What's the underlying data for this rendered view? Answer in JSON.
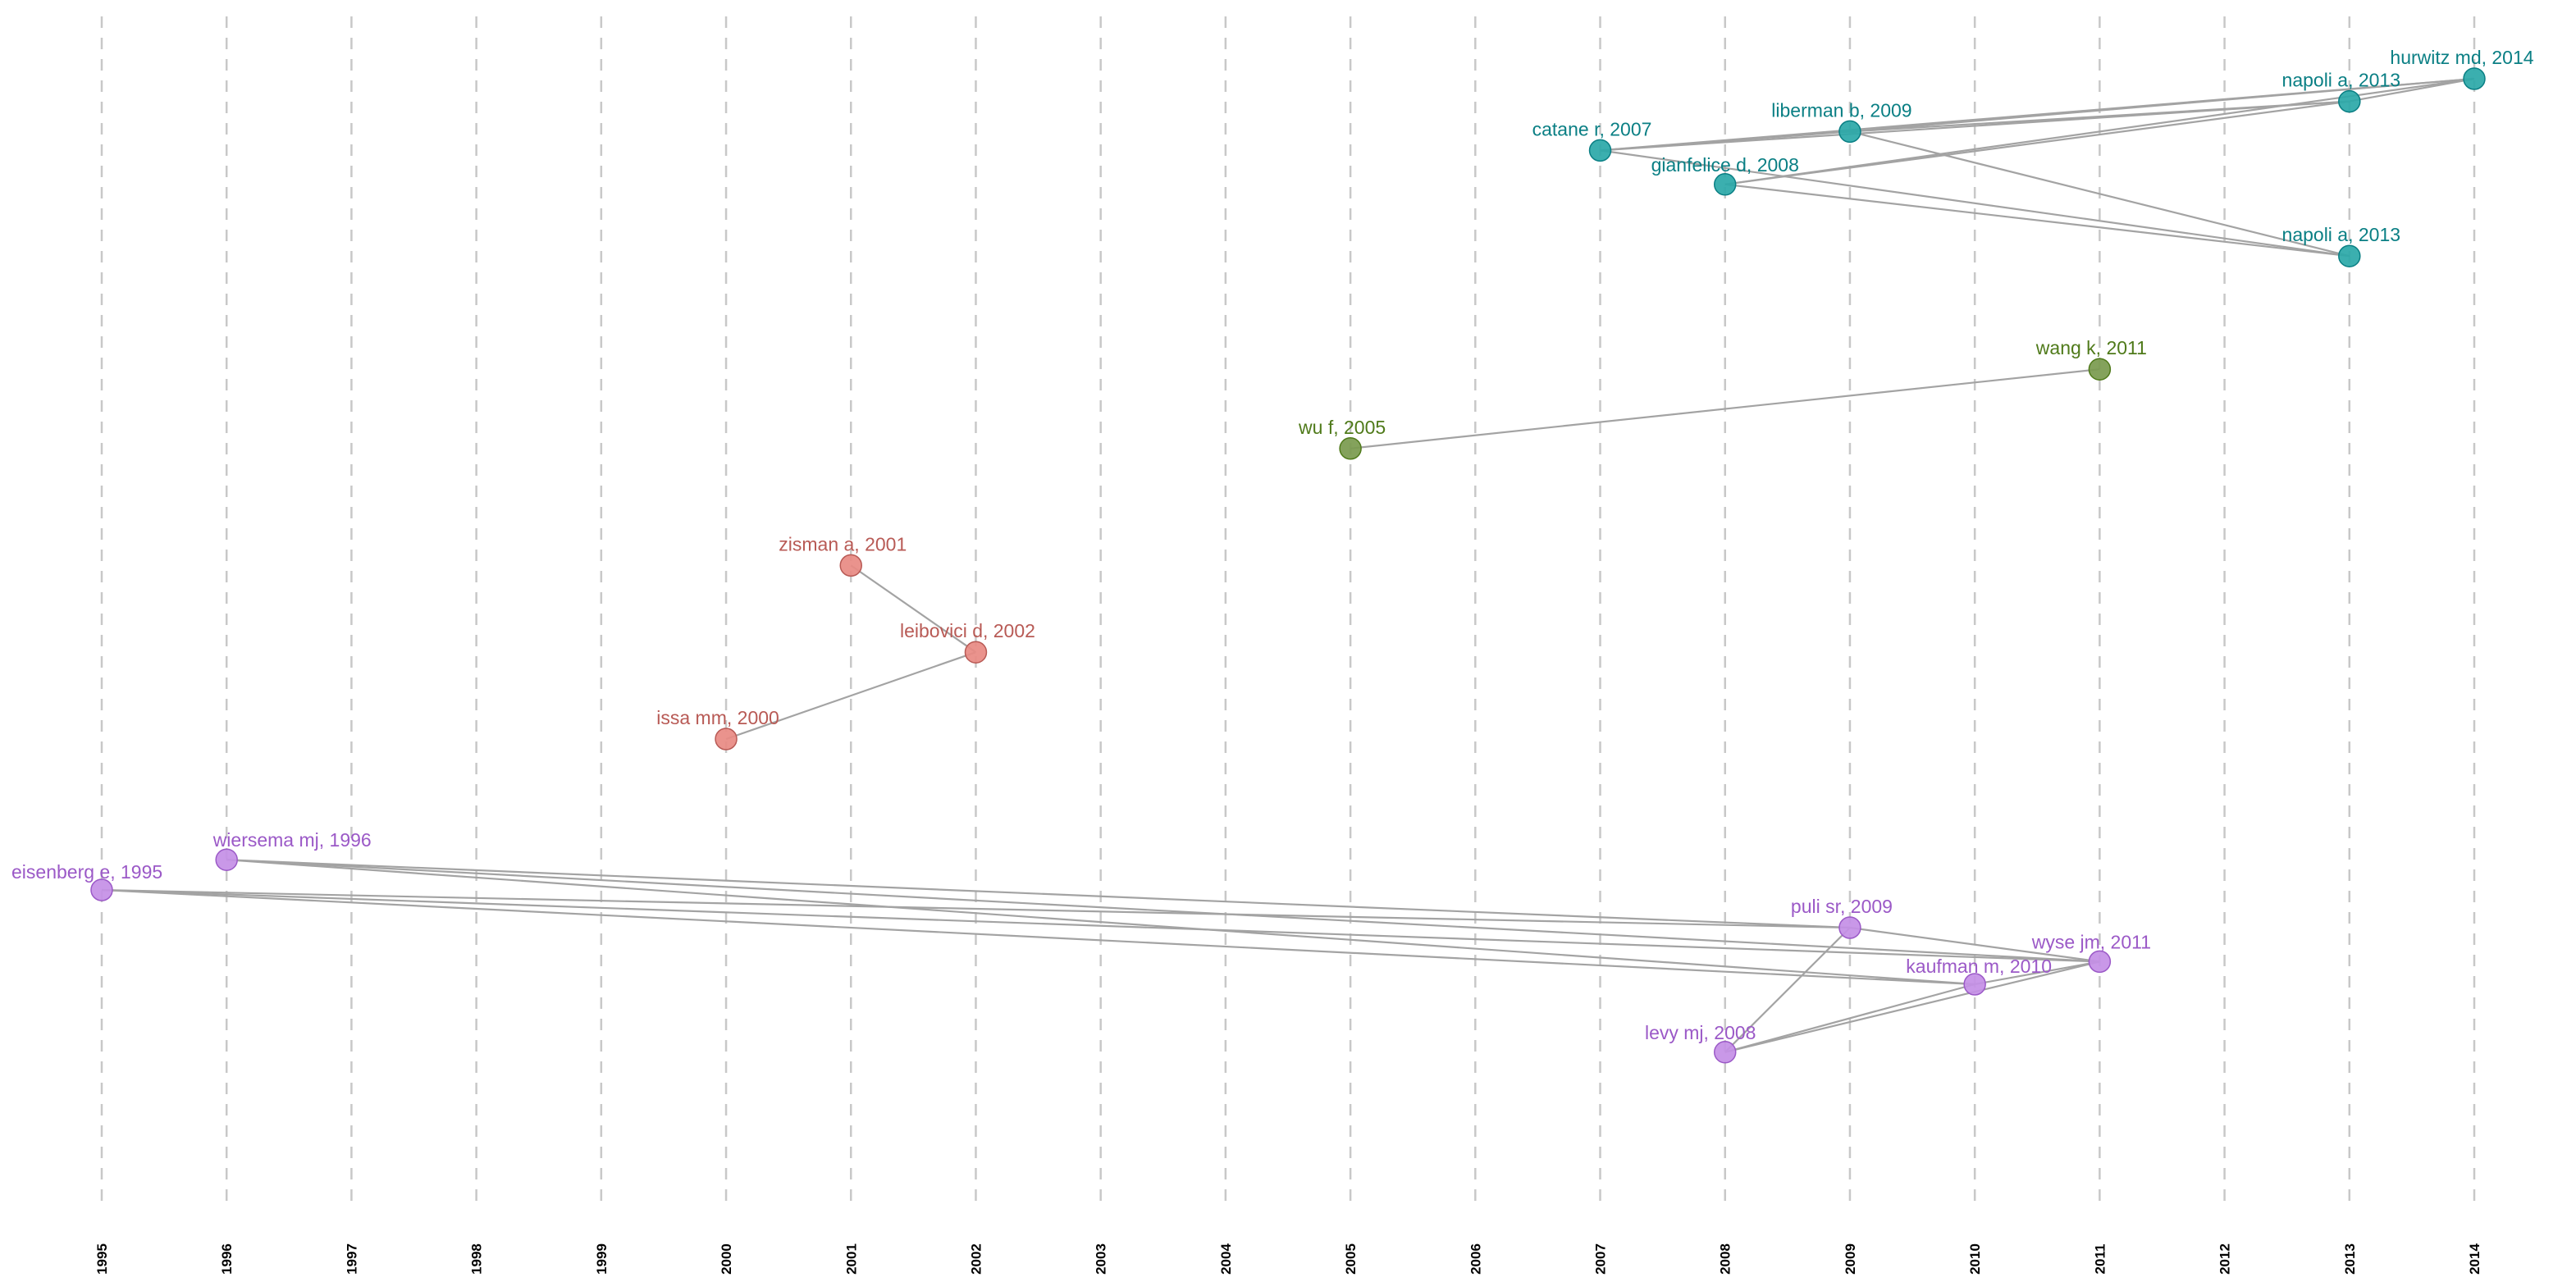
{
  "chart_data": {
    "type": "network-timeline",
    "title": "",
    "xlabel": "",
    "ylabel": "",
    "xlim": [
      1995,
      2014
    ],
    "x_ticks": [
      "1995",
      "1996",
      "1997",
      "1998",
      "1999",
      "2000",
      "2001",
      "2002",
      "2003",
      "2004",
      "2005",
      "2006",
      "2007",
      "2008",
      "2009",
      "2010",
      "2011",
      "2012",
      "2013",
      "2014"
    ],
    "grid": "vertical dashed",
    "clusters": [
      {
        "name": "cluster-1",
        "color": "#2aa8a8",
        "label_color": "#0a7f84"
      },
      {
        "name": "cluster-2",
        "color": "#7a9a4e",
        "label_color": "#4f7a1a"
      },
      {
        "name": "cluster-3",
        "color": "#e88a83",
        "label_color": "#b85a55"
      },
      {
        "name": "cluster-4",
        "color": "#c48fe6",
        "label_color": "#9b59c7"
      }
    ],
    "nodes": [
      {
        "id": "hurwitz",
        "label": "hurwitz md, 2014",
        "year": 2014,
        "row": 1.0,
        "cluster": 0
      },
      {
        "id": "napoli1",
        "label": "napoli a, 2013",
        "year": 2013,
        "row": 1.6,
        "cluster": 0
      },
      {
        "id": "liberman",
        "label": "liberman b, 2009",
        "year": 2009,
        "row": 2.4,
        "cluster": 0
      },
      {
        "id": "catane",
        "label": "catane r, 2007",
        "year": 2007,
        "row": 2.9,
        "cluster": 0
      },
      {
        "id": "gianfelice",
        "label": "gianfelice d, 2008",
        "year": 2008,
        "row": 3.8,
        "cluster": 0
      },
      {
        "id": "napoli2",
        "label": "napoli a, 2013",
        "year": 2013,
        "row": 5.7,
        "cluster": 0
      },
      {
        "id": "wang",
        "label": "wang k, 2011",
        "year": 2011,
        "row": 8.7,
        "cluster": 1
      },
      {
        "id": "wu",
        "label": "wu f, 2005",
        "year": 2005,
        "row": 10.8,
        "cluster": 1
      },
      {
        "id": "zisman",
        "label": "zisman a, 2001",
        "year": 2001,
        "row": 13.9,
        "cluster": 2
      },
      {
        "id": "leibovici",
        "label": "leibovici d, 2002",
        "year": 2002,
        "row": 16.2,
        "cluster": 2
      },
      {
        "id": "issa",
        "label": "issa mm, 2000",
        "year": 2000,
        "row": 18.5,
        "cluster": 2
      },
      {
        "id": "wiersema",
        "label": "wiersema mj, 1996",
        "year": 1996,
        "row": 21.7,
        "cluster": 3
      },
      {
        "id": "eisenberg",
        "label": "eisenberg e, 1995",
        "year": 1995,
        "row": 22.5,
        "cluster": 3
      },
      {
        "id": "puli",
        "label": "puli sr, 2009",
        "year": 2009,
        "row": 23.5,
        "cluster": 3
      },
      {
        "id": "wyse",
        "label": "wyse jm, 2011",
        "year": 2011,
        "row": 24.4,
        "cluster": 3
      },
      {
        "id": "kaufman",
        "label": "kaufman m, 2010",
        "year": 2010,
        "row": 25.0,
        "cluster": 3
      },
      {
        "id": "levy",
        "label": "levy mj, 2008",
        "year": 2008,
        "row": 26.8,
        "cluster": 3
      }
    ],
    "edges": [
      [
        "catane",
        "hurwitz"
      ],
      [
        "catane",
        "napoli1"
      ],
      [
        "catane",
        "napoli2"
      ],
      [
        "catane",
        "liberman"
      ],
      [
        "liberman",
        "hurwitz"
      ],
      [
        "liberman",
        "napoli1"
      ],
      [
        "liberman",
        "napoli2"
      ],
      [
        "gianfelice",
        "hurwitz"
      ],
      [
        "gianfelice",
        "napoli1"
      ],
      [
        "gianfelice",
        "napoli2"
      ],
      [
        "napoli1",
        "hurwitz"
      ],
      [
        "wu",
        "wang"
      ],
      [
        "zisman",
        "leibovici"
      ],
      [
        "issa",
        "leibovici"
      ],
      [
        "wiersema",
        "puli"
      ],
      [
        "wiersema",
        "wyse"
      ],
      [
        "wiersema",
        "kaufman"
      ],
      [
        "eisenberg",
        "puli"
      ],
      [
        "eisenberg",
        "wyse"
      ],
      [
        "eisenberg",
        "kaufman"
      ],
      [
        "puli",
        "wyse"
      ],
      [
        "levy",
        "puli"
      ],
      [
        "levy",
        "kaufman"
      ],
      [
        "levy",
        "wyse"
      ],
      [
        "kaufman",
        "wyse"
      ]
    ]
  }
}
